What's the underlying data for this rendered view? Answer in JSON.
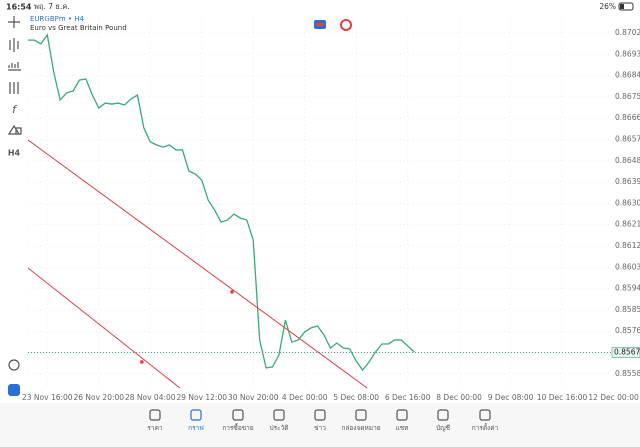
{
  "status_bar": {
    "time": "16:54",
    "date": "พฤ. 7 ธ.ค.",
    "battery": "26%"
  },
  "toolbar": {
    "timeframe": "H4"
  },
  "chart_data": {
    "type": "line",
    "title": "EURGBPm • H4",
    "subtitle": "Euro vs Great Britain Pound",
    "color": "#3aaa78",
    "grid": true,
    "x": [
      0,
      1,
      2,
      3,
      4,
      5,
      6,
      7,
      8,
      9,
      10,
      11,
      12,
      13,
      14,
      15,
      16,
      17,
      18,
      19,
      20,
      21,
      22,
      23,
      24,
      25,
      26,
      27,
      28,
      29,
      30,
      31,
      32,
      33,
      34,
      35,
      36,
      37,
      38,
      39,
      40,
      41,
      42,
      43,
      44,
      45,
      46,
      47,
      48,
      49,
      50,
      51,
      52,
      53,
      54,
      55,
      56,
      57,
      58,
      59,
      60
    ],
    "values": [
      0.8699,
      0.8699,
      0.86974,
      0.87012,
      0.86855,
      0.86737,
      0.86767,
      0.86775,
      0.86821,
      0.86826,
      0.86758,
      0.86703,
      0.86724,
      0.8672,
      0.86724,
      0.86716,
      0.86741,
      0.86758,
      0.86619,
      0.8656,
      0.86547,
      0.86538,
      0.86547,
      0.86526,
      0.86526,
      0.86437,
      0.86424,
      0.86399,
      0.86314,
      0.86272,
      0.86221,
      0.8623,
      0.86255,
      0.86238,
      0.8623,
      0.86145,
      0.85723,
      0.85605,
      0.85609,
      0.8566,
      0.85807,
      0.85714,
      0.85723,
      0.85757,
      0.85774,
      0.85782,
      0.85744,
      0.85689,
      0.8571,
      0.85689,
      0.85685,
      0.85634,
      0.85596,
      0.8563,
      0.85672,
      0.85706,
      0.85706,
      0.85723,
      0.85723,
      0.85698,
      0.85672
    ],
    "xlim": [
      0,
      92
    ],
    "ylim": [
      0.8552,
      0.87092
    ],
    "yticks": [
      {
        "value": 0.8702,
        "label": "0.87020"
      },
      {
        "value": 0.8693,
        "label": "0.86930"
      },
      {
        "value": 0.8684,
        "label": "0.86840"
      },
      {
        "value": 0.8675,
        "label": "0.86750"
      },
      {
        "value": 0.8666,
        "label": "0.86660"
      },
      {
        "value": 0.8657,
        "label": "0.86570"
      },
      {
        "value": 0.8648,
        "label": "0.86480"
      },
      {
        "value": 0.8639,
        "label": "0.86390"
      },
      {
        "value": 0.863,
        "label": "0.86300"
      },
      {
        "value": 0.8621,
        "label": "0.86210"
      },
      {
        "value": 0.8612,
        "label": "0.86120"
      },
      {
        "value": 0.8603,
        "label": "0.86030"
      },
      {
        "value": 0.8594,
        "label": "0.85940"
      },
      {
        "value": 0.8585,
        "label": "0.85850"
      },
      {
        "value": 0.8576,
        "label": "0.85760"
      },
      {
        "value": 0.8558,
        "label": "0.85580"
      }
    ],
    "xticks": [
      {
        "value": 3,
        "label": "23 Nov 16:00"
      },
      {
        "value": 11,
        "label": "26 Nov 20:00"
      },
      {
        "value": 19,
        "label": "28 Nov 04:00"
      },
      {
        "value": 27,
        "label": "29 Nov 12:00"
      },
      {
        "value": 35,
        "label": "30 Nov 20:00"
      },
      {
        "value": 43,
        "label": "4 Dec 00:00"
      },
      {
        "value": 51,
        "label": "5 Dec 08:00"
      },
      {
        "value": 59,
        "label": "6 Dec 16:00"
      },
      {
        "value": 67,
        "label": "8 Dec 00:00"
      },
      {
        "value": 75,
        "label": "9 Dec 08:00"
      },
      {
        "value": 83,
        "label": "10 Dec 16:00"
      },
      {
        "value": 91,
        "label": "12 Dec 00:00"
      }
    ],
    "last": {
      "value": 0.8567,
      "label": "0.85670"
    },
    "trendlines": [
      {
        "color": "#e04040",
        "x": [
          0,
          52.7
        ],
        "values": [
          0.86568,
          0.8552
        ],
        "anchor": [
          31.7,
          0.85926
        ]
      },
      {
        "color": "#e04040",
        "x": [
          0,
          23.6
        ],
        "values": [
          0.86027,
          0.8552
        ],
        "anchor": [
          17.7,
          0.8563
        ]
      }
    ]
  },
  "nav": [
    "ราคา",
    "กราฟ",
    "การซื้อขาย",
    "ประวัติ",
    "ข่าว",
    "กล่องจดหมาย",
    "แชท",
    "บัญชี",
    "การตั้งค่า"
  ]
}
